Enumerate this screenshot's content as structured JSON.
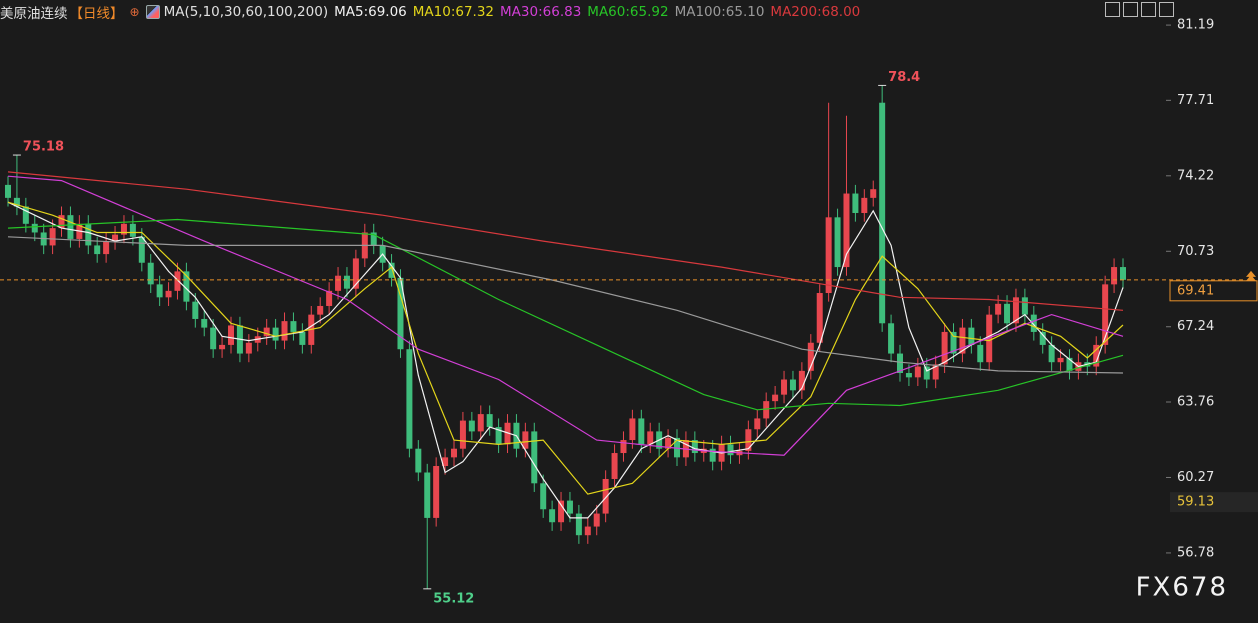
{
  "chart_data": {
    "type": "candlestick",
    "instrument": "美原油连续",
    "period": "【日线】",
    "ma_label": "MA(5,10,30,60,100,200)",
    "watermark": "FX678",
    "up_color": "#e8474f",
    "down_color": "#3fbd7c",
    "ylim": [
      53.54,
      82.35
    ],
    "yticks": [
      81.19,
      77.71,
      74.22,
      70.73,
      67.24,
      63.76,
      60.27,
      56.78
    ],
    "current_price": 69.41,
    "marker_price": 59.13,
    "open": [
      73.8,
      73.2,
      72.8,
      72.0,
      71.6,
      71.0,
      71.8,
      72.4,
      71.3,
      72.0,
      71.0,
      70.6,
      71.2,
      71.5,
      72.0,
      71.4,
      70.2,
      69.2,
      68.6,
      68.9,
      69.8,
      68.4,
      67.6,
      67.2,
      66.2,
      66.4,
      67.3,
      66.0,
      66.5,
      66.8,
      67.2,
      66.6,
      67.5,
      67.0,
      66.4,
      67.8,
      68.2,
      68.9,
      69.6,
      69.0,
      70.4,
      71.6,
      71.0,
      70.2,
      69.5,
      66.2,
      61.6,
      60.5,
      58.4,
      60.8,
      61.2,
      61.6,
      62.9,
      62.4,
      63.2,
      62.6,
      61.8,
      62.8,
      61.6,
      62.4,
      60.0,
      58.8,
      58.2,
      59.2,
      58.6,
      57.6,
      58.0,
      58.6,
      60.2,
      61.4,
      62.0,
      63.0,
      61.8,
      62.4,
      61.6,
      62.1,
      61.2,
      62.0,
      61.4,
      61.6,
      61.0,
      61.8,
      61.3,
      61.5,
      62.5,
      63.0,
      63.8,
      64.1,
      64.8,
      64.3,
      65.2,
      66.5,
      68.8,
      72.3,
      70.0,
      73.4,
      72.5,
      73.2,
      77.6,
      67.4,
      66.0,
      65.1,
      64.9,
      65.4,
      64.8,
      65.5,
      67.0,
      66.0,
      67.2,
      66.4,
      65.6,
      67.8,
      68.3,
      67.4,
      68.6,
      67.8,
      67.0,
      66.4,
      65.6,
      65.8,
      65.2,
      65.6,
      65.4,
      66.4,
      69.2,
      70.0
    ],
    "high": [
      74.2,
      75.18,
      73.2,
      72.4,
      72.0,
      72.2,
      72.8,
      72.8,
      72.4,
      72.4,
      71.4,
      71.6,
      71.9,
      72.4,
      72.4,
      71.8,
      70.6,
      69.6,
      69.3,
      70.2,
      70.2,
      68.8,
      68.0,
      67.6,
      66.8,
      67.7,
      67.7,
      66.9,
      67.2,
      67.6,
      67.6,
      67.9,
      67.9,
      67.4,
      68.2,
      68.6,
      69.3,
      70.0,
      70.0,
      70.8,
      72.0,
      72.0,
      71.4,
      70.6,
      69.9,
      66.6,
      62.0,
      60.9,
      61.2,
      61.6,
      62.0,
      63.3,
      63.3,
      63.6,
      63.6,
      63.0,
      63.2,
      63.2,
      62.8,
      62.8,
      60.4,
      59.2,
      59.6,
      59.6,
      59.0,
      58.4,
      59.0,
      60.6,
      61.8,
      62.4,
      63.4,
      63.4,
      62.8,
      62.8,
      62.5,
      62.5,
      62.4,
      62.4,
      62.0,
      62.0,
      62.2,
      62.2,
      61.9,
      62.9,
      63.4,
      64.2,
      64.5,
      65.2,
      65.2,
      65.6,
      66.9,
      69.2,
      77.6,
      72.7,
      77.0,
      73.8,
      73.6,
      74.0,
      78.4,
      67.8,
      66.4,
      65.5,
      65.8,
      65.8,
      65.9,
      67.4,
      67.4,
      67.6,
      67.6,
      66.8,
      68.2,
      68.7,
      68.7,
      69.0,
      69.0,
      68.2,
      67.4,
      66.8,
      66.2,
      66.2,
      66.0,
      66.0,
      66.8,
      69.6,
      70.4,
      70.4
    ],
    "low": [
      72.8,
      72.4,
      71.6,
      71.2,
      70.6,
      70.6,
      71.4,
      70.9,
      70.9,
      70.6,
      70.2,
      70.2,
      70.8,
      71.1,
      71.0,
      69.8,
      68.8,
      68.2,
      68.2,
      68.5,
      68.0,
      67.2,
      66.8,
      65.8,
      65.8,
      66.0,
      65.6,
      65.6,
      66.1,
      66.4,
      66.2,
      66.2,
      66.6,
      66.0,
      66.0,
      67.4,
      67.8,
      68.5,
      68.6,
      68.6,
      70.0,
      70.6,
      69.8,
      69.1,
      65.8,
      61.2,
      60.1,
      55.12,
      58.0,
      60.4,
      60.8,
      61.2,
      62.0,
      62.0,
      62.2,
      61.4,
      61.4,
      61.2,
      61.2,
      59.6,
      58.4,
      57.8,
      57.8,
      58.2,
      57.2,
      57.2,
      57.6,
      58.2,
      59.8,
      61.0,
      61.6,
      61.4,
      61.4,
      61.2,
      61.2,
      60.8,
      60.8,
      61.0,
      61.0,
      60.6,
      60.6,
      60.9,
      60.9,
      61.1,
      62.1,
      62.6,
      63.4,
      63.7,
      63.9,
      63.9,
      64.8,
      66.1,
      68.4,
      69.6,
      69.6,
      72.1,
      72.1,
      72.8,
      67.0,
      65.6,
      64.7,
      64.5,
      64.5,
      64.4,
      64.4,
      65.1,
      65.6,
      65.6,
      66.0,
      65.2,
      65.2,
      67.4,
      67.0,
      67.0,
      67.4,
      66.6,
      66.0,
      65.2,
      65.2,
      64.8,
      64.8,
      65.0,
      65.0,
      66.0,
      68.8,
      69.0
    ],
    "close": [
      73.2,
      72.8,
      72.0,
      71.6,
      71.0,
      71.8,
      72.4,
      71.3,
      72.0,
      71.0,
      70.6,
      71.2,
      71.5,
      72.0,
      71.4,
      70.2,
      69.2,
      68.6,
      68.9,
      69.8,
      68.4,
      67.6,
      67.2,
      66.2,
      66.4,
      67.3,
      66.0,
      66.5,
      66.8,
      67.2,
      66.6,
      67.5,
      67.0,
      66.4,
      67.8,
      68.2,
      68.9,
      69.6,
      69.0,
      70.4,
      71.6,
      71.0,
      70.2,
      69.5,
      66.2,
      61.6,
      60.5,
      58.4,
      60.8,
      61.2,
      61.6,
      62.9,
      62.4,
      63.2,
      62.6,
      61.8,
      62.8,
      61.6,
      62.4,
      60.0,
      58.8,
      58.2,
      59.2,
      58.6,
      57.6,
      58.0,
      58.6,
      60.2,
      61.4,
      62.0,
      63.0,
      61.8,
      62.4,
      61.6,
      62.1,
      61.2,
      62.0,
      61.4,
      61.6,
      61.0,
      61.8,
      61.3,
      61.5,
      62.5,
      63.0,
      63.8,
      64.1,
      64.8,
      64.3,
      65.2,
      66.5,
      68.8,
      72.3,
      70.0,
      73.4,
      72.5,
      73.2,
      73.6,
      67.4,
      66.0,
      65.1,
      64.9,
      65.4,
      64.8,
      65.5,
      67.0,
      66.0,
      67.2,
      66.4,
      65.6,
      67.8,
      68.3,
      67.4,
      68.6,
      67.8,
      67.0,
      66.4,
      65.6,
      65.8,
      65.2,
      65.6,
      65.4,
      66.4,
      69.2,
      70.0,
      69.41
    ],
    "series": [
      {
        "name": "MA5:69.06",
        "color": "#f2f2f2",
        "x": [
          0,
          3,
          6,
          9,
          12,
          15,
          18,
          21,
          24,
          27,
          30,
          33,
          36,
          39,
          42,
          44,
          46,
          49,
          51,
          54,
          57,
          60,
          63,
          65,
          68,
          71,
          74,
          77,
          80,
          83,
          86,
          89,
          91,
          94,
          97,
          99,
          101,
          103,
          105,
          108,
          111,
          114,
          117,
          120,
          122,
          125
        ],
        "values": [
          73.0,
          72.4,
          71.8,
          71.6,
          71.2,
          71.4,
          69.8,
          68.6,
          66.8,
          66.6,
          66.8,
          67.0,
          67.8,
          69.2,
          70.6,
          69.5,
          65.0,
          60.5,
          61.0,
          62.6,
          62.2,
          60.2,
          58.4,
          58.4,
          59.8,
          61.6,
          62.2,
          61.6,
          61.4,
          61.6,
          63.0,
          64.4,
          66.4,
          70.6,
          72.6,
          71.0,
          67.2,
          65.2,
          65.6,
          66.4,
          67.0,
          67.8,
          66.4,
          65.4,
          65.6,
          69.06
        ]
      },
      {
        "name": "MA10:67.32",
        "color": "#e3d51b",
        "x": [
          0,
          5,
          10,
          15,
          20,
          25,
          30,
          35,
          40,
          43,
          46,
          50,
          55,
          60,
          65,
          70,
          75,
          80,
          85,
          90,
          95,
          98,
          102,
          106,
          110,
          114,
          118,
          121,
          125
        ],
        "values": [
          73.0,
          72.4,
          71.6,
          71.6,
          69.6,
          67.4,
          66.8,
          67.2,
          69.0,
          70.0,
          66.0,
          62.0,
          61.8,
          62.0,
          59.5,
          60.0,
          62.0,
          61.8,
          62.0,
          64.0,
          68.5,
          70.5,
          69.0,
          66.8,
          66.6,
          67.4,
          66.8,
          65.8,
          67.32
        ]
      },
      {
        "name": "MA30:66.83",
        "color": "#d23fd6",
        "x": [
          0,
          6,
          22,
          38,
          46,
          55,
          66,
          78,
          87,
          94,
          100,
          117,
          125
        ],
        "values": [
          74.2,
          74.0,
          71.2,
          68.5,
          66.2,
          64.8,
          62.0,
          61.5,
          61.3,
          64.3,
          65.2,
          67.8,
          66.8
        ]
      },
      {
        "name": "MA60:65.92",
        "color": "#27c427",
        "x": [
          0,
          19,
          41,
          55,
          78,
          84,
          92,
          100,
          111,
          125
        ],
        "values": [
          71.8,
          72.2,
          71.5,
          68.5,
          64.1,
          63.4,
          63.7,
          63.6,
          64.3,
          65.92
        ]
      },
      {
        "name": "MA100:65.10",
        "color": "#9a9a9a",
        "x": [
          0,
          20,
          42,
          61,
          75,
          89,
          100,
          111,
          125
        ],
        "values": [
          71.4,
          71.0,
          71.0,
          69.4,
          68.0,
          66.2,
          65.6,
          65.2,
          65.1
        ]
      },
      {
        "name": "MA200:68.00",
        "color": "#d8393d",
        "x": [
          0,
          20,
          42,
          60,
          80,
          90,
          100,
          110,
          125
        ],
        "values": [
          74.4,
          73.6,
          72.4,
          71.2,
          70.0,
          69.3,
          68.6,
          68.5,
          68.0
        ]
      }
    ]
  }
}
